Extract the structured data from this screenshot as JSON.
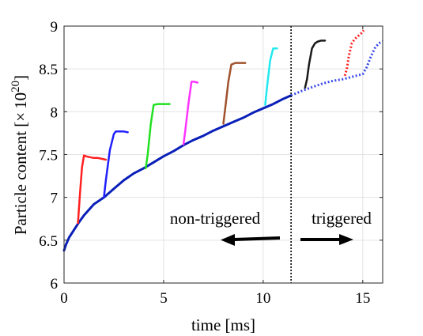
{
  "chart_data": {
    "type": "line",
    "title": "",
    "xlabel": "time [ms]",
    "ylabel_main": "Particle content [",
    "ylabel_times": "×",
    "ylabel_base": "10",
    "ylabel_exp": "20",
    "ylabel_close": "]",
    "xlim": [
      0,
      16
    ],
    "ylim": [
      6,
      9
    ],
    "xticks": [
      0,
      5,
      10,
      15
    ],
    "xtick_labels": [
      "0",
      "5",
      "10",
      "15"
    ],
    "yticks": [
      6,
      6.5,
      7,
      7.5,
      8,
      8.5,
      9
    ],
    "ytick_labels": [
      "6",
      "6.5",
      "7",
      "7.5",
      "8",
      "8.5",
      "9"
    ],
    "grid": true,
    "divider_x": 11.4,
    "annotations": {
      "left_label": "non-triggered",
      "right_label": "triggered"
    },
    "series": [
      {
        "color": "#0a1fb8",
        "dash": "solid",
        "x": [
          0,
          0.1,
          0.25,
          0.5,
          0.75,
          1,
          1.5,
          2,
          2.5,
          3,
          3.5,
          4,
          4.5,
          5,
          5.5,
          6,
          6.5,
          7,
          7.5,
          8,
          8.5,
          9,
          9.5,
          10,
          10.5,
          11,
          11.4
        ],
        "y": [
          6.38,
          6.45,
          6.53,
          6.62,
          6.71,
          6.79,
          6.92,
          7.0,
          7.1,
          7.2,
          7.28,
          7.34,
          7.41,
          7.48,
          7.54,
          7.61,
          7.67,
          7.72,
          7.78,
          7.83,
          7.88,
          7.93,
          7.99,
          8.04,
          8.09,
          8.15,
          8.19
        ]
      },
      {
        "color": "#ff2020",
        "dash": "solid",
        "x": [
          0.7,
          0.8,
          0.9,
          1.0,
          1.1,
          1.3,
          1.5,
          1.7,
          1.9,
          2.1
        ],
        "y": [
          6.7,
          7.05,
          7.35,
          7.49,
          7.48,
          7.47,
          7.46,
          7.46,
          7.45,
          7.44
        ]
      },
      {
        "color": "#2020ff",
        "dash": "solid",
        "x": [
          2.0,
          2.1,
          2.3,
          2.5,
          2.6,
          2.8,
          3.0,
          3.2
        ],
        "y": [
          7.0,
          7.2,
          7.55,
          7.74,
          7.77,
          7.77,
          7.77,
          7.76
        ]
      },
      {
        "color": "#22e022",
        "dash": "solid",
        "x": [
          4.1,
          4.2,
          4.35,
          4.5,
          4.7,
          4.9,
          5.1,
          5.3
        ],
        "y": [
          7.34,
          7.5,
          7.85,
          8.08,
          8.09,
          8.09,
          8.09,
          8.09
        ]
      },
      {
        "color": "#ff33ff",
        "dash": "solid",
        "x": [
          6.0,
          6.1,
          6.25,
          6.4,
          6.55,
          6.7
        ],
        "y": [
          7.62,
          7.8,
          8.1,
          8.35,
          8.35,
          8.34
        ]
      },
      {
        "color": "#a0522d",
        "dash": "solid",
        "x": [
          8.0,
          8.1,
          8.25,
          8.4,
          8.6,
          8.8,
          9.0,
          9.1
        ],
        "y": [
          7.86,
          8.05,
          8.35,
          8.55,
          8.57,
          8.57,
          8.57,
          8.57
        ]
      },
      {
        "color": "#22e8f0",
        "dash": "solid",
        "x": [
          10.1,
          10.2,
          10.35,
          10.5,
          10.6,
          10.7
        ],
        "y": [
          8.08,
          8.3,
          8.6,
          8.74,
          8.74,
          8.74
        ]
      },
      {
        "color": "#1a1a1a",
        "dash": "solid",
        "x": [
          12.1,
          12.2,
          12.3,
          12.45,
          12.6,
          12.75,
          12.9,
          13.1
        ],
        "y": [
          8.28,
          8.38,
          8.55,
          8.74,
          8.8,
          8.82,
          8.83,
          8.83
        ]
      },
      {
        "color": "#3a4be8",
        "dash": "dotted",
        "x": [
          11.4,
          12.0,
          12.5,
          13.0,
          13.5,
          14.0,
          14.5,
          15.0,
          15.2,
          15.4,
          15.6,
          15.8,
          16.0
        ],
        "y": [
          8.19,
          8.25,
          8.29,
          8.33,
          8.36,
          8.38,
          8.41,
          8.44,
          8.52,
          8.64,
          8.74,
          8.8,
          8.82
        ]
      },
      {
        "color": "#ff2020",
        "dash": "dotted",
        "x": [
          14.1,
          14.2,
          14.3,
          14.45,
          14.6,
          14.75,
          14.9,
          15.05
        ],
        "y": [
          8.42,
          8.5,
          8.65,
          8.8,
          8.85,
          8.88,
          8.91,
          8.95
        ]
      }
    ]
  }
}
